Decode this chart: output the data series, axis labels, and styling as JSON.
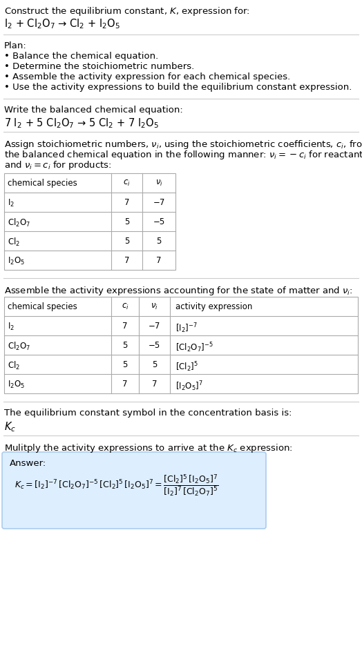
{
  "title_line1": "Construct the equilibrium constant, $K$, expression for:",
  "reaction_unbalanced": "I$_2$ + Cl$_2$O$_7$ → Cl$_2$ + I$_2$O$_5$",
  "plan_header": "Plan:",
  "plan_bullets": [
    "• Balance the chemical equation.",
    "• Determine the stoichiometric numbers.",
    "• Assemble the activity expression for each chemical species.",
    "• Use the activity expressions to build the equilibrium constant expression."
  ],
  "balanced_header": "Write the balanced chemical equation:",
  "reaction_balanced": "7 I$_2$ + 5 Cl$_2$O$_7$ → 5 Cl$_2$ + 7 I$_2$O$_5$",
  "stoich_header_lines": [
    "Assign stoichiometric numbers, $\\nu_i$, using the stoichiometric coefficients, $c_i$, from",
    "the balanced chemical equation in the following manner: $\\nu_i = -c_i$ for reactants",
    "and $\\nu_i = c_i$ for products:"
  ],
  "table1_headers": [
    "chemical species",
    "$c_i$",
    "$\\nu_i$"
  ],
  "table1_rows": [
    [
      "I$_2$",
      "7",
      "−7"
    ],
    [
      "Cl$_2$O$_7$",
      "5",
      "−5"
    ],
    [
      "Cl$_2$",
      "5",
      "5"
    ],
    [
      "I$_2$O$_5$",
      "7",
      "7"
    ]
  ],
  "activity_header": "Assemble the activity expressions accounting for the state of matter and $\\nu_i$:",
  "table2_headers": [
    "chemical species",
    "$c_i$",
    "$\\nu_i$",
    "activity expression"
  ],
  "table2_rows": [
    [
      "I$_2$",
      "7",
      "−7",
      "[I$_2$]$^{-7}$"
    ],
    [
      "Cl$_2$O$_7$",
      "5",
      "−5",
      "[Cl$_2$O$_7$]$^{-5}$"
    ],
    [
      "Cl$_2$",
      "5",
      "5",
      "[Cl$_2$]$^5$"
    ],
    [
      "I$_2$O$_5$",
      "7",
      "7",
      "[I$_2$O$_5$]$^7$"
    ]
  ],
  "kc_symbol_text": "The equilibrium constant symbol in the concentration basis is:",
  "kc_symbol": "$K_c$",
  "multiply_header": "Mulitply the activity expressions to arrive at the $K_c$ expression:",
  "answer_label": "Answer:",
  "bg_color": "#ffffff",
  "table_border_color": "#aaaaaa",
  "answer_box_color": "#ddeeff",
  "answer_box_border": "#aaccee",
  "text_color": "#000000",
  "separator_color": "#cccccc",
  "font_size": 9.5,
  "small_font": 8.5
}
